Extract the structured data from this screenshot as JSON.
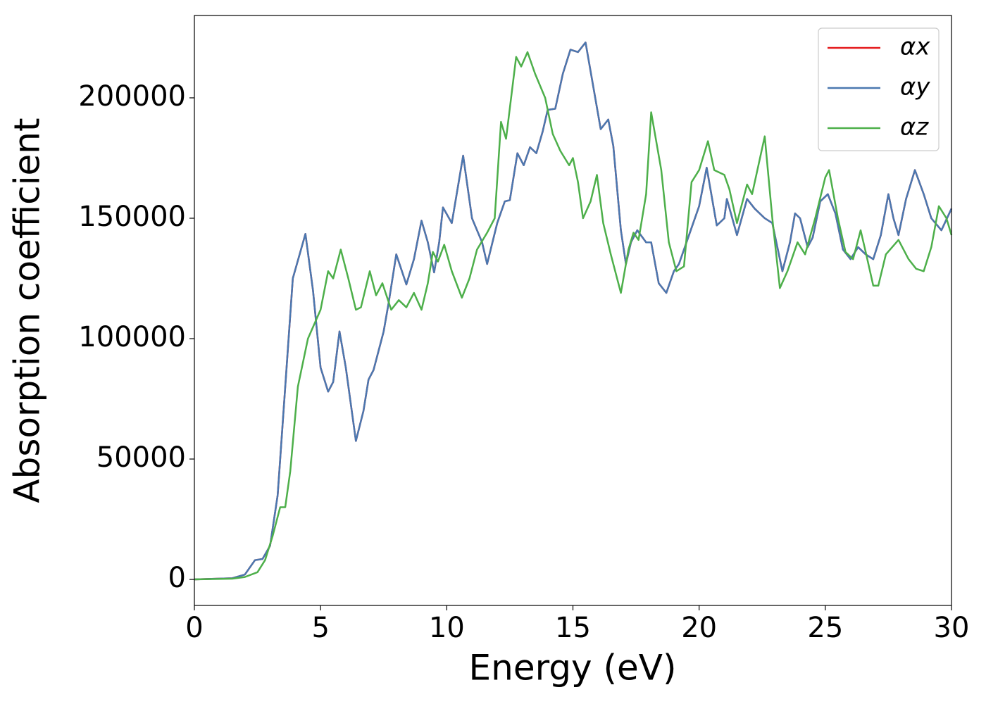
{
  "chart_data": {
    "type": "line",
    "xlabel": "Energy (eV)",
    "ylabel": "Absorption coefficient",
    "xlim": [
      0,
      30
    ],
    "xticks": [
      0,
      5,
      10,
      15,
      20,
      25,
      30
    ],
    "ylim": [
      -10800,
      234200
    ],
    "yticks": [
      0,
      50000,
      100000,
      150000,
      200000
    ],
    "legend": "upper right",
    "series": [
      {
        "name": "αx",
        "color": "#e41a1c",
        "x": [
          0,
          1.5,
          2.0,
          2.4,
          2.7,
          3.0,
          3.3,
          3.6,
          3.9,
          4.4,
          4.7,
          5.0,
          5.3,
          5.5,
          5.75,
          6.0,
          6.4,
          6.7,
          6.9,
          7.1,
          7.3,
          7.5,
          7.7,
          8.0,
          8.4,
          8.7,
          9.0,
          9.25,
          9.5,
          9.7,
          9.85,
          10.2,
          10.65,
          11.0,
          11.4,
          11.6,
          12.0,
          12.3,
          12.5,
          12.8,
          13.05,
          13.3,
          13.55,
          13.8,
          14.0,
          14.3,
          14.6,
          14.9,
          15.2,
          15.5,
          15.8,
          16.1,
          16.4,
          16.6,
          16.9,
          17.1,
          17.3,
          17.55,
          17.9,
          18.1,
          18.4,
          18.7,
          19.0,
          19.2,
          19.6,
          20.0,
          20.3,
          20.7,
          21.0,
          21.1,
          21.5,
          21.9,
          22.2,
          22.6,
          22.9,
          23.3,
          23.6,
          23.8,
          24.0,
          24.3,
          24.5,
          24.8,
          25.1,
          25.4,
          25.7,
          26.0,
          26.3,
          26.6,
          26.9,
          27.2,
          27.5,
          27.7,
          27.9,
          28.2,
          28.55,
          28.9,
          29.2,
          29.6,
          30
        ],
        "values": [
          0,
          500,
          2000,
          8000,
          8500,
          14000,
          35000,
          80000,
          125000,
          143500,
          120000,
          88000,
          78000,
          82000,
          103000,
          88000,
          57500,
          70000,
          83000,
          87000,
          95000,
          103000,
          115000,
          135000,
          122500,
          133000,
          149000,
          140000,
          127500,
          140000,
          154500,
          148000,
          176000,
          150000,
          140000,
          131000,
          148000,
          157000,
          157500,
          177000,
          172000,
          179500,
          177000,
          186000,
          195000,
          195500,
          210000,
          220000,
          219000,
          223000,
          205000,
          187000,
          191000,
          180000,
          145000,
          131000,
          140000,
          145000,
          140000,
          140000,
          123000,
          119000,
          128000,
          131000,
          143000,
          155000,
          171000,
          147000,
          150000,
          158000,
          143000,
          158000,
          154000,
          150000,
          148000,
          128000,
          140000,
          152000,
          150000,
          138000,
          142000,
          157000,
          160000,
          152000,
          137000,
          133000,
          138000,
          135000,
          133000,
          143000,
          160000,
          150000,
          143000,
          158000,
          170000,
          160000,
          150000,
          145000,
          154000
        ]
      },
      {
        "name": "αy",
        "color": "#4a78b0",
        "x": [
          0,
          1.5,
          2.0,
          2.4,
          2.7,
          3.0,
          3.3,
          3.6,
          3.9,
          4.4,
          4.7,
          5.0,
          5.3,
          5.5,
          5.75,
          6.0,
          6.4,
          6.7,
          6.9,
          7.1,
          7.3,
          7.5,
          7.7,
          8.0,
          8.4,
          8.7,
          9.0,
          9.25,
          9.5,
          9.7,
          9.85,
          10.2,
          10.65,
          11.0,
          11.4,
          11.6,
          12.0,
          12.3,
          12.5,
          12.8,
          13.05,
          13.3,
          13.55,
          13.8,
          14.0,
          14.3,
          14.6,
          14.9,
          15.2,
          15.5,
          15.8,
          16.1,
          16.4,
          16.6,
          16.9,
          17.1,
          17.3,
          17.55,
          17.9,
          18.1,
          18.4,
          18.7,
          19.0,
          19.2,
          19.6,
          20.0,
          20.3,
          20.7,
          21.0,
          21.1,
          21.5,
          21.9,
          22.2,
          22.6,
          22.9,
          23.3,
          23.6,
          23.8,
          24.0,
          24.3,
          24.5,
          24.8,
          25.1,
          25.4,
          25.7,
          26.0,
          26.3,
          26.6,
          26.9,
          27.2,
          27.5,
          27.7,
          27.9,
          28.2,
          28.55,
          28.9,
          29.2,
          29.6,
          30
        ],
        "values": [
          0,
          500,
          2000,
          8000,
          8500,
          14000,
          35000,
          80000,
          125000,
          143500,
          120000,
          88000,
          78000,
          82000,
          103000,
          88000,
          57500,
          70000,
          83000,
          87000,
          95000,
          103000,
          115000,
          135000,
          122500,
          133000,
          149000,
          140000,
          127500,
          140000,
          154500,
          148000,
          176000,
          150000,
          140000,
          131000,
          148000,
          157000,
          157500,
          177000,
          172000,
          179500,
          177000,
          186000,
          195000,
          195500,
          210000,
          220000,
          219000,
          223000,
          205000,
          187000,
          191000,
          180000,
          145000,
          131000,
          140000,
          145000,
          140000,
          140000,
          123000,
          119000,
          128000,
          131000,
          143000,
          155000,
          171000,
          147000,
          150000,
          158000,
          143000,
          158000,
          154000,
          150000,
          148000,
          128000,
          140000,
          152000,
          150000,
          138000,
          142000,
          157000,
          160000,
          152000,
          137000,
          133000,
          138000,
          135000,
          133000,
          143000,
          160000,
          150000,
          143000,
          158000,
          170000,
          160000,
          150000,
          145000,
          154000
        ]
      },
      {
        "name": "αz",
        "color": "#4daf4a",
        "x": [
          0,
          1.5,
          2.0,
          2.5,
          2.8,
          3.1,
          3.4,
          3.6,
          3.8,
          4.1,
          4.5,
          5.0,
          5.3,
          5.5,
          5.8,
          6.1,
          6.4,
          6.6,
          6.95,
          7.2,
          7.45,
          7.8,
          8.1,
          8.4,
          8.7,
          9.0,
          9.25,
          9.45,
          9.65,
          9.9,
          10.2,
          10.6,
          10.9,
          11.2,
          11.6,
          11.9,
          12.15,
          12.35,
          12.75,
          12.95,
          13.2,
          13.5,
          13.9,
          14.2,
          14.5,
          14.85,
          15.0,
          15.2,
          15.4,
          15.7,
          15.95,
          16.2,
          16.5,
          16.9,
          17.2,
          17.4,
          17.6,
          17.9,
          18.1,
          18.5,
          18.8,
          19.1,
          19.4,
          19.7,
          20.0,
          20.35,
          20.6,
          21.0,
          21.2,
          21.5,
          21.9,
          22.1,
          22.6,
          22.9,
          23.2,
          23.5,
          23.9,
          24.2,
          24.6,
          25.0,
          25.15,
          25.5,
          25.8,
          26.1,
          26.4,
          26.6,
          26.9,
          27.1,
          27.4,
          27.9,
          28.3,
          28.6,
          28.9,
          29.2,
          29.5,
          29.8,
          30
        ],
        "values": [
          0,
          300,
          1000,
          3000,
          8000,
          18000,
          30000,
          30000,
          45000,
          80000,
          100000,
          112000,
          128000,
          125000,
          137000,
          125000,
          112000,
          113000,
          128000,
          118000,
          123000,
          112000,
          116000,
          113000,
          119000,
          112000,
          123000,
          136000,
          132000,
          139000,
          128000,
          117000,
          125000,
          137000,
          144000,
          150000,
          190000,
          183000,
          217000,
          213000,
          219000,
          210000,
          200000,
          185000,
          178000,
          172000,
          175000,
          165000,
          150000,
          157000,
          168000,
          148000,
          135000,
          119000,
          137000,
          144000,
          141000,
          160000,
          194000,
          170000,
          140000,
          128000,
          130000,
          165000,
          170000,
          182000,
          170000,
          168000,
          162000,
          148000,
          164000,
          160000,
          184000,
          150000,
          121000,
          128000,
          140000,
          135000,
          150000,
          167000,
          170000,
          150000,
          136000,
          133000,
          145000,
          136000,
          122000,
          122000,
          135000,
          141000,
          133000,
          129000,
          128000,
          138000,
          155000,
          150000,
          143000
        ]
      }
    ]
  }
}
